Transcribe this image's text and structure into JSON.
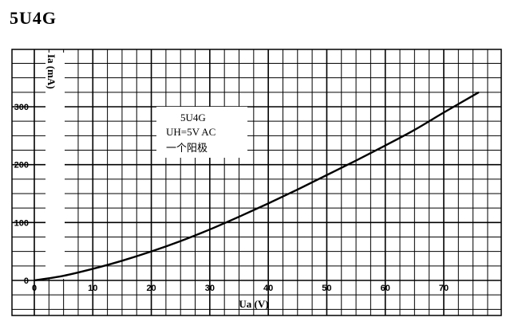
{
  "page": {
    "title": "5U4G"
  },
  "chart_data": {
    "type": "line",
    "title": "5U4G",
    "xlabel": "Ua (V)",
    "ylabel": "Ia (mA)",
    "xlim": [
      0,
      80
    ],
    "ylim": [
      0,
      380
    ],
    "xticks": [
      0,
      10,
      20,
      30,
      40,
      50,
      60,
      70
    ],
    "yticks": [
      100,
      200,
      300
    ],
    "grid": true,
    "annotation": [
      "5U4G",
      "UH=5V AC",
      "一个阳极"
    ],
    "series": [
      {
        "x": [
          0,
          5,
          10,
          15,
          20,
          25,
          30,
          35,
          40,
          45,
          50,
          55,
          60,
          65,
          70,
          76
        ],
        "values": [
          0,
          8,
          20,
          34,
          50,
          68,
          88,
          110,
          133,
          157,
          182,
          207,
          233,
          260,
          290,
          325
        ]
      }
    ]
  }
}
